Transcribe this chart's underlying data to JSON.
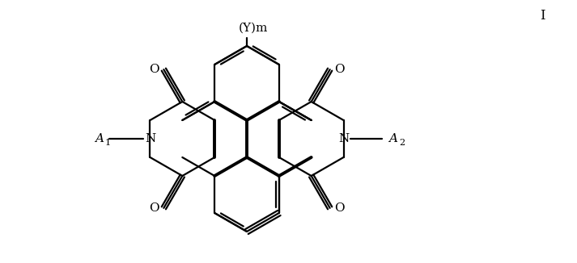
{
  "background_color": "#ffffff",
  "line_color": "#000000",
  "lw": 1.6,
  "blw": 2.8,
  "figsize": [
    7.13,
    3.26
  ],
  "dpi": 100,
  "label_I": "I",
  "label_Ym": "(Y)m",
  "label_A1": "A",
  "label_A1_sub": "1",
  "label_A2": "A",
  "label_A2_sub": "2",
  "label_N": "N",
  "label_O": "O",
  "fontsize": 11,
  "sub_fontsize": 8
}
